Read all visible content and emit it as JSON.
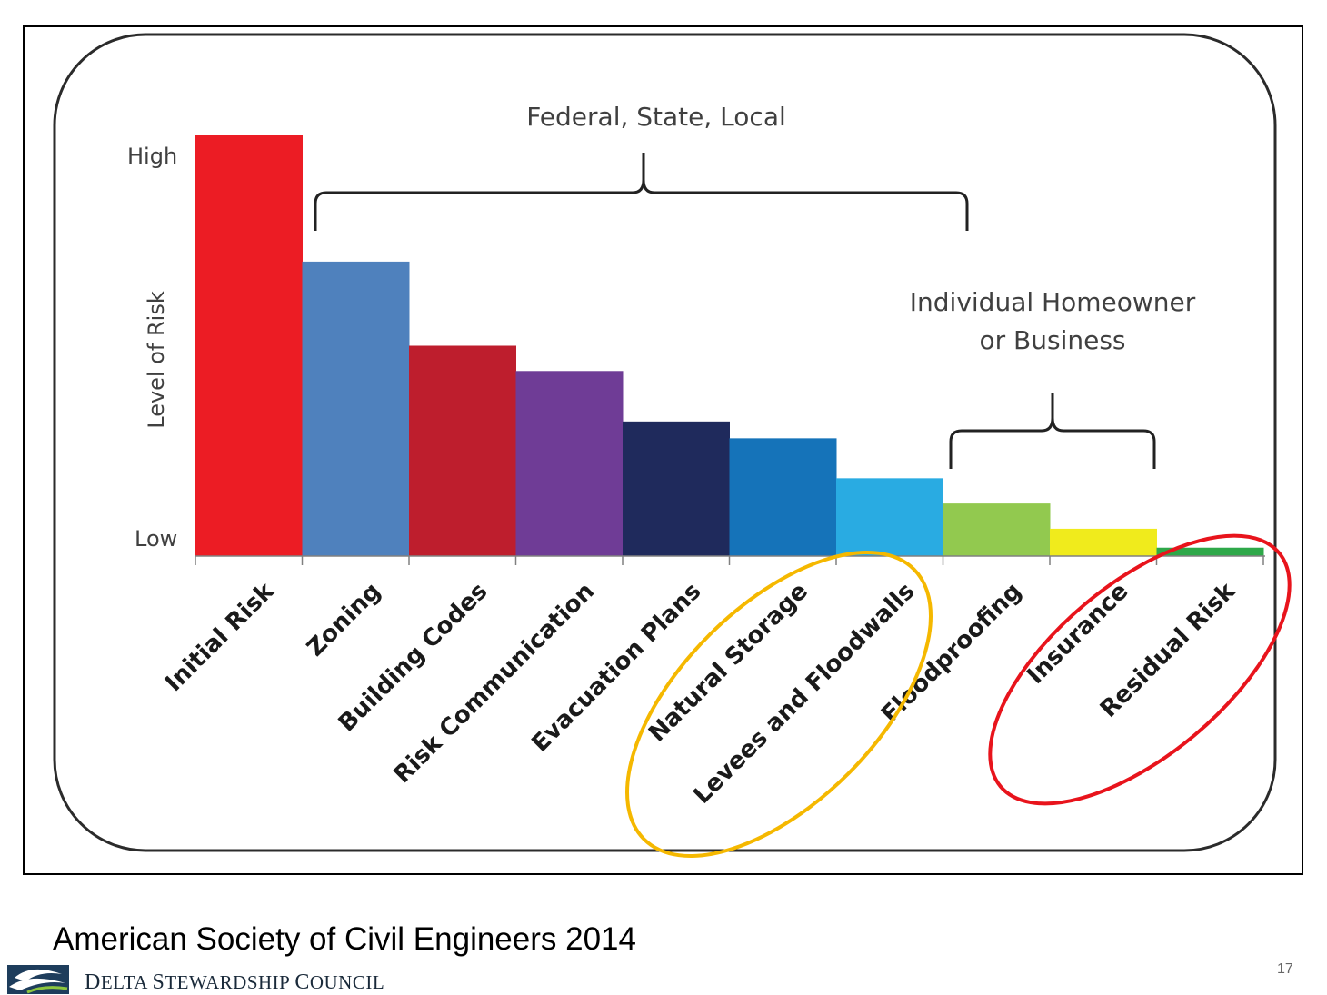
{
  "chart_data": {
    "type": "bar",
    "title": "",
    "xlabel": "",
    "ylabel": "Level of Risk",
    "y_ticks": {
      "high": "High",
      "low": "Low"
    },
    "ylim": [
      0,
      100
    ],
    "categories": [
      "Initial Risk",
      "Zoning",
      "Building Codes",
      "Risk Communication",
      "Evacuation Plans",
      "Natural Storage",
      "Levees and Floodwalls",
      "Floodproofing",
      "Insurance",
      "Residual Risk"
    ],
    "values": [
      100,
      70,
      50,
      44,
      32,
      28,
      18.5,
      12.5,
      6.5,
      2
    ],
    "colors": [
      "#ec1c24",
      "#4f81bd",
      "#be1e2d",
      "#6f3c96",
      "#1f2a5c",
      "#1573b9",
      "#29abe2",
      "#92c94f",
      "#f0eb1c",
      "#2ea849"
    ],
    "annotations": [
      {
        "text": "Federal, State, Local",
        "spans": [
          "Zoning",
          "Levees and Floodwalls"
        ]
      },
      {
        "text": "Individual Homeowner or Business",
        "lines": [
          "Individual Homeowner",
          "or Business"
        ],
        "spans": [
          "Floodproofing",
          "Insurance"
        ]
      }
    ],
    "highlights": [
      {
        "category": "Levees and Floodwalls",
        "color": "#f5b800"
      },
      {
        "category": "Residual Risk",
        "color": "#e8141c"
      }
    ],
    "grid": false,
    "legend": "none"
  },
  "caption": "American Society of Civil Engineers 2014",
  "org": {
    "name": "Delta Stewardship Council",
    "logo": "delta-waves-logo"
  },
  "slide_number": "17"
}
